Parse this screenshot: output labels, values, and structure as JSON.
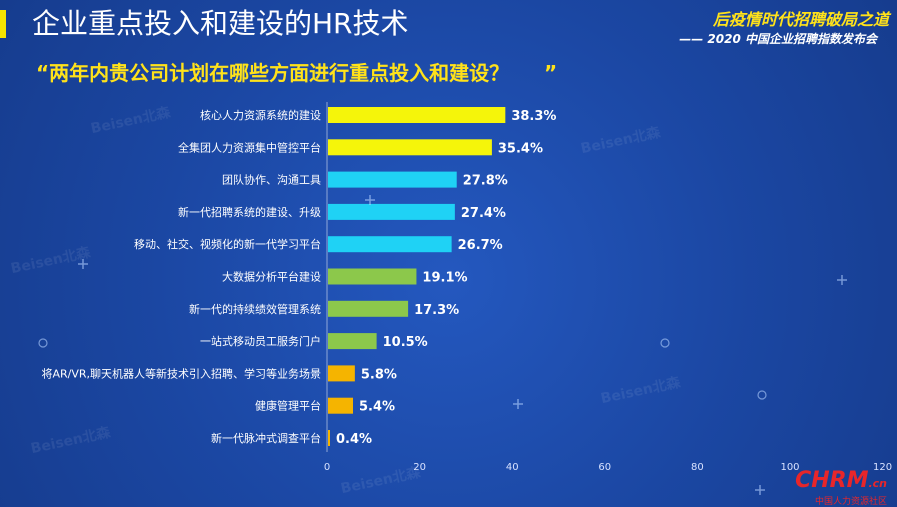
{
  "header": {
    "title": "企业重点投入和建设的HR技术",
    "brand": "后疫情时代招聘破局之道",
    "brand_sub": "—— 2020 中国企业招聘指数发布会"
  },
  "question": "“两年内贵公司计划在哪些方面进行重点投入和建设？     ”",
  "watermark": "Beisen北森",
  "footer": {
    "logo": "CHRM",
    "logo_suffix": ".cn",
    "logo_sub": "中国人力资源社区"
  },
  "colors": {
    "yellow": "#f5f50a",
    "cyan": "#1fd2f5",
    "green": "#8cc84b",
    "orange": "#f5b400",
    "accent": "#ffe21a"
  },
  "chart_data": {
    "type": "bar",
    "orientation": "horizontal",
    "categories": [
      "核心人力资源系统的建设",
      "全集团人力资源集中管控平台",
      "团队协作、沟通工具",
      "新一代招聘系统的建设、升级",
      "移动、社交、视频化的新一代学习平台",
      "大数据分析平台建设",
      "新一代的持续绩效管理系统",
      "一站式移动员工服务门户",
      "将AR/VR,聊天机器人等新技术引入招聘、学习等业务场景",
      "健康管理平台",
      "新一代脉冲式调查平台"
    ],
    "values": [
      38.3,
      35.4,
      27.8,
      27.4,
      26.7,
      19.1,
      17.3,
      10.5,
      5.8,
      5.4,
      0.4
    ],
    "data_labels": [
      "38.3%",
      "35.4%",
      "27.8%",
      "27.4%",
      "26.7%",
      "19.1%",
      "17.3%",
      "10.5%",
      "5.8%",
      "5.4%",
      "0.4%"
    ],
    "bar_colors": [
      "#f5f50a",
      "#f5f50a",
      "#1fd2f5",
      "#1fd2f5",
      "#1fd2f5",
      "#8cc84b",
      "#8cc84b",
      "#8cc84b",
      "#f5b400",
      "#f5b400",
      "#f5b400"
    ],
    "xlim": [
      0,
      120
    ],
    "xticks": [
      "0",
      "20",
      "40",
      "60",
      "80",
      "100",
      "120"
    ],
    "xtick_values": [
      0,
      20,
      40,
      60,
      80,
      100,
      120
    ],
    "grid": false,
    "legend": "none"
  }
}
